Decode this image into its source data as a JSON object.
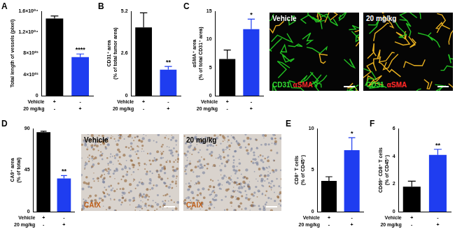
{
  "chart_data": [
    {
      "panel": "A",
      "type": "bar",
      "y_label": [
        "Total length of vessels (pixel)"
      ],
      "values": [
        14600,
        7300
      ],
      "errors": [
        500,
        600
      ],
      "colors": [
        "#000000",
        "#1f3df0"
      ],
      "ylim": [
        0,
        16000
      ],
      "yticks": [
        0,
        {
          "value": 4000,
          "label": "4×10⁰³"
        },
        {
          "value": 8000,
          "label": "8×10⁰³"
        },
        {
          "value": 12000,
          "label": "1.2×10⁰⁴"
        },
        {
          "value": 16000,
          "label": "1.6×10⁰⁴"
        }
      ],
      "grid": false,
      "significance": [
        null,
        "****"
      ],
      "x_table": [
        {
          "label": "Vehicle",
          "marks": [
            "+",
            "-"
          ]
        },
        {
          "label": "20 mg/kg",
          "marks": [
            "-",
            "+"
          ]
        }
      ]
    },
    {
      "panel": "B",
      "type": "bar",
      "y_label": [
        "CD31⁺ area",
        "(% of total tumor area)"
      ],
      "values": [
        4.2,
        1.6
      ],
      "errors": [
        0.9,
        0.2
      ],
      "colors": [
        "#000000",
        "#1f3df0"
      ],
      "ylim": [
        0,
        5.2
      ],
      "yticks": [
        0,
        2.6,
        5.2
      ],
      "grid": false,
      "significance": [
        null,
        "**"
      ],
      "x_table": [
        {
          "label": "Vehicle",
          "marks": [
            "+",
            "-"
          ]
        },
        {
          "label": "20 mg/kg",
          "marks": [
            "-",
            "+"
          ]
        }
      ]
    },
    {
      "panel": "C",
      "type": "bar",
      "y_label": [
        "αSMA⁺ area",
        "(% of total CD31⁺ area)"
      ],
      "values": [
        6.5,
        11.8
      ],
      "errors": [
        1.6,
        1.8
      ],
      "colors": [
        "#000000",
        "#1f3df0"
      ],
      "ylim": [
        0,
        15
      ],
      "yticks": [
        0,
        5,
        10,
        15
      ],
      "grid": false,
      "significance": [
        null,
        "*"
      ],
      "x_table": [
        {
          "label": "Vehicle",
          "marks": [
            "+",
            "-"
          ]
        },
        {
          "label": "20 mg/kg",
          "marks": [
            "-",
            "+"
          ]
        }
      ]
    },
    {
      "panel": "D",
      "type": "bar",
      "y_label": [
        "CA9⁺ area",
        "(% of total)"
      ],
      "values": [
        86,
        36
      ],
      "errors": [
        1,
        3
      ],
      "colors": [
        "#000000",
        "#1f3df0"
      ],
      "ylim": [
        0,
        90
      ],
      "yticks": [
        0,
        45,
        90
      ],
      "grid": false,
      "significance": [
        null,
        "**"
      ],
      "x_table": [
        {
          "label": "Vehicle",
          "marks": [
            "+",
            "-"
          ]
        },
        {
          "label": "20 mg/kg",
          "marks": [
            "-",
            "+"
          ]
        }
      ]
    },
    {
      "panel": "E",
      "type": "bar",
      "y_label": [
        "CD8⁺ T cells",
        "(% of CD45⁺)"
      ],
      "values": [
        3.7,
        7.4
      ],
      "errors": [
        0.5,
        1.5
      ],
      "colors": [
        "#000000",
        "#1f3df0"
      ],
      "ylim": [
        0,
        10
      ],
      "yticks": [
        0,
        5,
        10
      ],
      "grid": false,
      "significance": [
        null,
        "*"
      ],
      "x_table": [
        {
          "label": "Vehicle",
          "marks": [
            "+",
            "-"
          ]
        },
        {
          "label": "20 mg/kg",
          "marks": [
            "-",
            "+"
          ]
        }
      ]
    },
    {
      "panel": "F",
      "type": "bar",
      "y_label": [
        "CD69⁺ CD8⁺ T cells",
        "(% of CD45⁺)"
      ],
      "values": [
        1.8,
        4.1
      ],
      "errors": [
        0.4,
        0.4
      ],
      "colors": [
        "#000000",
        "#1f3df0"
      ],
      "ylim": [
        0,
        6
      ],
      "yticks": [
        0,
        2,
        4,
        6
      ],
      "grid": false,
      "significance": [
        null,
        "**"
      ],
      "x_table": [
        {
          "label": "Vehicle",
          "marks": [
            "+",
            "-"
          ]
        },
        {
          "label": "20 mg/kg",
          "marks": [
            "-",
            "+"
          ]
        }
      ]
    }
  ],
  "micrographs": [
    {
      "panel": "C",
      "images": [
        {
          "label": "Vehicle",
          "stains": [
            {
              "text": "CD31",
              "color": "#33dd33"
            },
            {
              "text": "αSMA",
              "color": "#ff2a2a"
            }
          ]
        },
        {
          "label": "20 mg/kg",
          "stains": [
            {
              "text": "CD31",
              "color": "#33dd33"
            },
            {
              "text": "αSMA",
              "color": "#ff2a2a"
            }
          ]
        }
      ]
    },
    {
      "panel": "D",
      "images": [
        {
          "label": "Vehicle",
          "stains": [
            {
              "text": "CAIX",
              "color": "#c0601a"
            }
          ]
        },
        {
          "label": "20 mg/kg",
          "stains": [
            {
              "text": "CAIX",
              "color": "#c0601a"
            }
          ]
        }
      ]
    }
  ]
}
